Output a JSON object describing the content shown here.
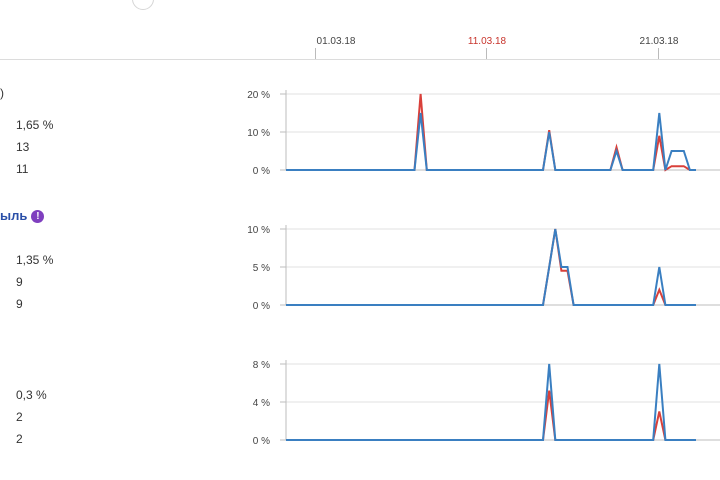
{
  "timeline": {
    "dates": [
      {
        "label": "01.03.18",
        "highlight": false
      },
      {
        "label": "11.03.18",
        "highlight": true
      },
      {
        "label": "21.03.18",
        "highlight": false
      }
    ]
  },
  "sections": [
    {
      "title": "",
      "metrics": [
        "1,65 %",
        "13",
        "11"
      ]
    },
    {
      "title": "ыль",
      "info_icon": "!",
      "metrics": [
        "1,35 %",
        "9",
        "9"
      ]
    },
    {
      "title": "",
      "metrics": [
        "0,3 %",
        "2",
        "2"
      ]
    }
  ],
  "partial_glyph": ")",
  "colors": {
    "blue": "#3a7fc1",
    "red": "#d9403a",
    "grid": "#e0e0e0",
    "axis": "#bdbdbd"
  },
  "chart_data": [
    {
      "type": "line",
      "ylim": [
        0,
        20
      ],
      "yticks": [
        "20 %",
        "10 %",
        "0 %"
      ],
      "xlabel": "",
      "ylabel": "",
      "series": [
        {
          "color": "red",
          "values": [
            0,
            0,
            0,
            0,
            0,
            0,
            0,
            0,
            0,
            0,
            0,
            0,
            0,
            0,
            0,
            0,
            0,
            0,
            0,
            0,
            0,
            0,
            20,
            0,
            0,
            0,
            0,
            0,
            0,
            0,
            0,
            0,
            0,
            0,
            0,
            0,
            0,
            0,
            0,
            0,
            0,
            0,
            0,
            10.5,
            0,
            0,
            0,
            0,
            0,
            0,
            0,
            0,
            0,
            0,
            6,
            0,
            0,
            0,
            0,
            0,
            0,
            9,
            0,
            1,
            1,
            1,
            0,
            0
          ]
        },
        {
          "color": "blue",
          "values": [
            0,
            0,
            0,
            0,
            0,
            0,
            0,
            0,
            0,
            0,
            0,
            0,
            0,
            0,
            0,
            0,
            0,
            0,
            0,
            0,
            0,
            0,
            15,
            0,
            0,
            0,
            0,
            0,
            0,
            0,
            0,
            0,
            0,
            0,
            0,
            0,
            0,
            0,
            0,
            0,
            0,
            0,
            0,
            10,
            0,
            0,
            0,
            0,
            0,
            0,
            0,
            0,
            0,
            0,
            5,
            0,
            0,
            0,
            0,
            0,
            0,
            15,
            0,
            5,
            5,
            5,
            0,
            0
          ]
        }
      ]
    },
    {
      "type": "line",
      "ylim": [
        0,
        10
      ],
      "yticks": [
        "10 %",
        "5 %",
        "0 %"
      ],
      "xlabel": "",
      "ylabel": "",
      "series": [
        {
          "color": "red",
          "values": [
            0,
            0,
            0,
            0,
            0,
            0,
            0,
            0,
            0,
            0,
            0,
            0,
            0,
            0,
            0,
            0,
            0,
            0,
            0,
            0,
            0,
            0,
            0,
            0,
            0,
            0,
            0,
            0,
            0,
            0,
            0,
            0,
            0,
            0,
            0,
            0,
            0,
            0,
            0,
            0,
            0,
            0,
            0,
            5,
            10,
            4.5,
            4.5,
            0,
            0,
            0,
            0,
            0,
            0,
            0,
            0,
            0,
            0,
            0,
            0,
            0,
            0,
            2,
            0,
            0,
            0,
            0,
            0,
            0
          ]
        },
        {
          "color": "blue",
          "values": [
            0,
            0,
            0,
            0,
            0,
            0,
            0,
            0,
            0,
            0,
            0,
            0,
            0,
            0,
            0,
            0,
            0,
            0,
            0,
            0,
            0,
            0,
            0,
            0,
            0,
            0,
            0,
            0,
            0,
            0,
            0,
            0,
            0,
            0,
            0,
            0,
            0,
            0,
            0,
            0,
            0,
            0,
            0,
            5,
            10,
            5,
            5,
            0,
            0,
            0,
            0,
            0,
            0,
            0,
            0,
            0,
            0,
            0,
            0,
            0,
            0,
            5,
            0,
            0,
            0,
            0,
            0,
            0
          ]
        }
      ]
    },
    {
      "type": "line",
      "ylim": [
        0,
        8
      ],
      "yticks": [
        "8 %",
        "4 %",
        "0 %"
      ],
      "xlabel": "",
      "ylabel": "",
      "series": [
        {
          "color": "red",
          "values": [
            0,
            0,
            0,
            0,
            0,
            0,
            0,
            0,
            0,
            0,
            0,
            0,
            0,
            0,
            0,
            0,
            0,
            0,
            0,
            0,
            0,
            0,
            0,
            0,
            0,
            0,
            0,
            0,
            0,
            0,
            0,
            0,
            0,
            0,
            0,
            0,
            0,
            0,
            0,
            0,
            0,
            0,
            0,
            5.2,
            0,
            0,
            0,
            0,
            0,
            0,
            0,
            0,
            0,
            0,
            0,
            0,
            0,
            0,
            0,
            0,
            0,
            3,
            0,
            0,
            0,
            0,
            0,
            0
          ]
        },
        {
          "color": "blue",
          "values": [
            0,
            0,
            0,
            0,
            0,
            0,
            0,
            0,
            0,
            0,
            0,
            0,
            0,
            0,
            0,
            0,
            0,
            0,
            0,
            0,
            0,
            0,
            0,
            0,
            0,
            0,
            0,
            0,
            0,
            0,
            0,
            0,
            0,
            0,
            0,
            0,
            0,
            0,
            0,
            0,
            0,
            0,
            0,
            8,
            0,
            0,
            0,
            0,
            0,
            0,
            0,
            0,
            0,
            0,
            0,
            0,
            0,
            0,
            0,
            0,
            0,
            8,
            0,
            0,
            0,
            0,
            0,
            0
          ]
        }
      ]
    }
  ]
}
